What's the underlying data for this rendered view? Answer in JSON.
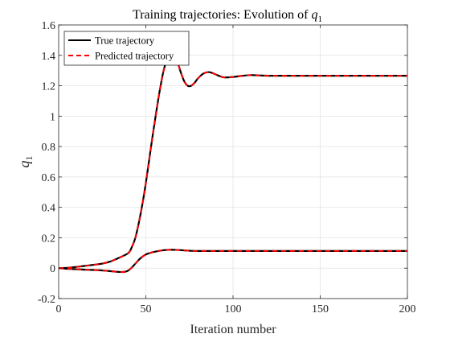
{
  "chart_data": {
    "type": "line",
    "title": "Training trajectories: Evolution of ",
    "title_math": "q",
    "title_math_sub": "1",
    "xlabel": "Iteration number",
    "ylabel": "q",
    "ylabel_sub": "1",
    "xlim": [
      0,
      200
    ],
    "ylim": [
      -0.2,
      1.6
    ],
    "xticks": [
      0,
      50,
      100,
      150,
      200
    ],
    "xtick_labels": [
      "0",
      "50",
      "100",
      "150",
      "200"
    ],
    "yticks": [
      -0.2,
      0,
      0.2,
      0.4,
      0.6,
      0.8,
      1,
      1.2,
      1.4,
      1.6
    ],
    "ytick_labels": [
      "-0.2",
      "0",
      "0.2",
      "0.4",
      "0.6",
      "0.8",
      "1",
      "1.2",
      "1.4",
      "1.6"
    ],
    "grid": true,
    "legend_position": "top-left",
    "legend": [
      {
        "name": "True trajectory",
        "color": "#000000",
        "style": "solid"
      },
      {
        "name": "Predicted trajectory",
        "color": "#ff0000",
        "style": "dashed"
      }
    ],
    "trajectories": [
      {
        "label": "upper",
        "points": [
          [
            0,
            0
          ],
          [
            5,
            0.002
          ],
          [
            10,
            0.008
          ],
          [
            15,
            0.015
          ],
          [
            20,
            0.022
          ],
          [
            25,
            0.03
          ],
          [
            30,
            0.045
          ],
          [
            35,
            0.07
          ],
          [
            40,
            0.1
          ],
          [
            42,
            0.14
          ],
          [
            44,
            0.2
          ],
          [
            46,
            0.3
          ],
          [
            48,
            0.42
          ],
          [
            50,
            0.56
          ],
          [
            52,
            0.72
          ],
          [
            54,
            0.88
          ],
          [
            56,
            1.03
          ],
          [
            58,
            1.17
          ],
          [
            60,
            1.29
          ],
          [
            62,
            1.37
          ],
          [
            64,
            1.41
          ],
          [
            66,
            1.4
          ],
          [
            68,
            1.36
          ],
          [
            70,
            1.29
          ],
          [
            72,
            1.23
          ],
          [
            74,
            1.2
          ],
          [
            76,
            1.2
          ],
          [
            78,
            1.22
          ],
          [
            80,
            1.25
          ],
          [
            83,
            1.28
          ],
          [
            86,
            1.29
          ],
          [
            89,
            1.28
          ],
          [
            92,
            1.265
          ],
          [
            95,
            1.255
          ],
          [
            100,
            1.258
          ],
          [
            105,
            1.265
          ],
          [
            110,
            1.27
          ],
          [
            115,
            1.268
          ],
          [
            120,
            1.266
          ],
          [
            130,
            1.266
          ],
          [
            150,
            1.266
          ],
          [
            175,
            1.266
          ],
          [
            200,
            1.266
          ]
        ]
      },
      {
        "label": "lower",
        "points": [
          [
            0,
            0
          ],
          [
            5,
            -0.004
          ],
          [
            10,
            -0.007
          ],
          [
            15,
            -0.01
          ],
          [
            20,
            -0.012
          ],
          [
            25,
            -0.015
          ],
          [
            30,
            -0.02
          ],
          [
            35,
            -0.025
          ],
          [
            38,
            -0.024
          ],
          [
            40,
            -0.015
          ],
          [
            42,
            0.005
          ],
          [
            44,
            0.03
          ],
          [
            46,
            0.055
          ],
          [
            48,
            0.075
          ],
          [
            50,
            0.09
          ],
          [
            53,
            0.102
          ],
          [
            56,
            0.11
          ],
          [
            60,
            0.118
          ],
          [
            64,
            0.121
          ],
          [
            68,
            0.12
          ],
          [
            72,
            0.117
          ],
          [
            76,
            0.114
          ],
          [
            80,
            0.113
          ],
          [
            90,
            0.113
          ],
          [
            100,
            0.113
          ],
          [
            125,
            0.113
          ],
          [
            150,
            0.113
          ],
          [
            175,
            0.113
          ],
          [
            200,
            0.113
          ]
        ]
      }
    ]
  }
}
